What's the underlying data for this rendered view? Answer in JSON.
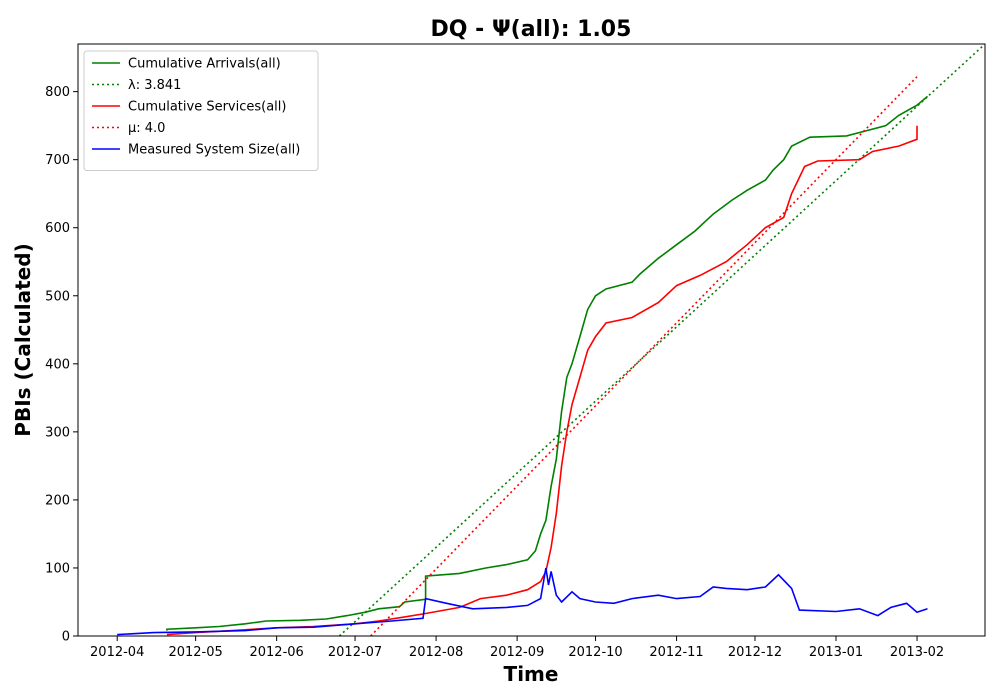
{
  "chart_data": {
    "type": "line",
    "title": "DQ -  Ψ(all): 1.05",
    "xlabel": "Time",
    "ylabel": "PBIs (Calculated)",
    "xlim": [
      "2012-03-17",
      "2013-02-27"
    ],
    "ylim": [
      0,
      870
    ],
    "xticks": [
      "2012-04",
      "2012-05",
      "2012-06",
      "2012-07",
      "2012-08",
      "2012-09",
      "2012-10",
      "2012-11",
      "2012-12",
      "2013-01",
      "2013-02"
    ],
    "yticks": [
      0,
      100,
      200,
      300,
      400,
      500,
      600,
      700,
      800
    ],
    "grid": false,
    "legend_position": "top-left",
    "series": [
      {
        "name": "Cumulative Arrivals(all)",
        "color": "#008000",
        "style": "solid",
        "points": [
          [
            "2012-04-20",
            8
          ],
          [
            "2012-04-20",
            10
          ],
          [
            "2012-05-01",
            12
          ],
          [
            "2012-05-10",
            14
          ],
          [
            "2012-05-20",
            18
          ],
          [
            "2012-05-28",
            22
          ],
          [
            "2012-06-10",
            23
          ],
          [
            "2012-06-20",
            25
          ],
          [
            "2012-06-28",
            30
          ],
          [
            "2012-07-05",
            35
          ],
          [
            "2012-07-10",
            40
          ],
          [
            "2012-07-18",
            43
          ],
          [
            "2012-07-20",
            50
          ],
          [
            "2012-07-28",
            54
          ],
          [
            "2012-07-28",
            88
          ],
          [
            "2012-08-10",
            92
          ],
          [
            "2012-08-20",
            100
          ],
          [
            "2012-08-28",
            105
          ],
          [
            "2012-09-05",
            112
          ],
          [
            "2012-09-08",
            125
          ],
          [
            "2012-09-10",
            150
          ],
          [
            "2012-09-12",
            170
          ],
          [
            "2012-09-14",
            220
          ],
          [
            "2012-09-16",
            260
          ],
          [
            "2012-09-18",
            330
          ],
          [
            "2012-09-20",
            380
          ],
          [
            "2012-09-22",
            400
          ],
          [
            "2012-09-25",
            440
          ],
          [
            "2012-09-28",
            480
          ],
          [
            "2012-10-01",
            500
          ],
          [
            "2012-10-05",
            510
          ],
          [
            "2012-10-15",
            520
          ],
          [
            "2012-10-18",
            532
          ],
          [
            "2012-10-25",
            555
          ],
          [
            "2012-11-01",
            575
          ],
          [
            "2012-11-08",
            595
          ],
          [
            "2012-11-15",
            620
          ],
          [
            "2012-11-22",
            640
          ],
          [
            "2012-11-28",
            655
          ],
          [
            "2012-12-05",
            670
          ],
          [
            "2012-12-08",
            685
          ],
          [
            "2012-12-12",
            700
          ],
          [
            "2012-12-15",
            720
          ],
          [
            "2012-12-22",
            733
          ],
          [
            "2013-01-05",
            735
          ],
          [
            "2013-01-12",
            742
          ],
          [
            "2013-01-20",
            750
          ],
          [
            "2013-01-25",
            765
          ],
          [
            "2013-02-01",
            780
          ],
          [
            "2013-02-05",
            793
          ]
        ]
      },
      {
        "name": "λ: 3.841",
        "color": "#008000",
        "style": "dotted",
        "points": [
          [
            "2012-06-25",
            0
          ],
          [
            "2013-02-27",
            870
          ]
        ]
      },
      {
        "name": "Cumulative Services(all)",
        "color": "#ff0000",
        "style": "solid",
        "points": [
          [
            "2012-04-20",
            2
          ],
          [
            "2012-05-01",
            5
          ],
          [
            "2012-05-15",
            8
          ],
          [
            "2012-06-01",
            12
          ],
          [
            "2012-06-15",
            14
          ],
          [
            "2012-07-01",
            18
          ],
          [
            "2012-07-10",
            22
          ],
          [
            "2012-07-20",
            28
          ],
          [
            "2012-07-28",
            33
          ],
          [
            "2012-08-10",
            42
          ],
          [
            "2012-08-18",
            55
          ],
          [
            "2012-08-28",
            60
          ],
          [
            "2012-09-05",
            68
          ],
          [
            "2012-09-10",
            80
          ],
          [
            "2012-09-12",
            95
          ],
          [
            "2012-09-14",
            130
          ],
          [
            "2012-09-16",
            180
          ],
          [
            "2012-09-18",
            250
          ],
          [
            "2012-09-20",
            300
          ],
          [
            "2012-09-22",
            340
          ],
          [
            "2012-09-25",
            380
          ],
          [
            "2012-09-28",
            420
          ],
          [
            "2012-10-01",
            440
          ],
          [
            "2012-10-05",
            460
          ],
          [
            "2012-10-15",
            468
          ],
          [
            "2012-10-25",
            490
          ],
          [
            "2012-11-01",
            515
          ],
          [
            "2012-11-10",
            530
          ],
          [
            "2012-11-20",
            550
          ],
          [
            "2012-11-28",
            575
          ],
          [
            "2012-12-05",
            600
          ],
          [
            "2012-12-12",
            615
          ],
          [
            "2012-12-15",
            650
          ],
          [
            "2012-12-20",
            690
          ],
          [
            "2012-12-25",
            698
          ],
          [
            "2013-01-10",
            700
          ],
          [
            "2013-01-15",
            712
          ],
          [
            "2013-01-25",
            720
          ],
          [
            "2013-02-01",
            730
          ],
          [
            "2013-02-01",
            750
          ]
        ]
      },
      {
        "name": "μ: 4.0",
        "color": "#ff0000",
        "style": "dotted",
        "points": [
          [
            "2012-07-07",
            0
          ],
          [
            "2013-02-01",
            822
          ]
        ]
      },
      {
        "name": "Measured System Size(all)",
        "color": "#0000ff",
        "style": "solid",
        "points": [
          [
            "2012-04-01",
            2
          ],
          [
            "2012-04-15",
            5
          ],
          [
            "2012-05-01",
            6
          ],
          [
            "2012-05-20",
            8
          ],
          [
            "2012-06-01",
            12
          ],
          [
            "2012-06-15",
            13
          ],
          [
            "2012-07-01",
            18
          ],
          [
            "2012-07-15",
            22
          ],
          [
            "2012-07-27",
            26
          ],
          [
            "2012-07-28",
            55
          ],
          [
            "2012-08-05",
            48
          ],
          [
            "2012-08-15",
            40
          ],
          [
            "2012-08-28",
            42
          ],
          [
            "2012-09-05",
            45
          ],
          [
            "2012-09-10",
            55
          ],
          [
            "2012-09-12",
            100
          ],
          [
            "2012-09-13",
            75
          ],
          [
            "2012-09-14",
            95
          ],
          [
            "2012-09-16",
            60
          ],
          [
            "2012-09-18",
            50
          ],
          [
            "2012-09-22",
            65
          ],
          [
            "2012-09-25",
            55
          ],
          [
            "2012-10-01",
            50
          ],
          [
            "2012-10-08",
            48
          ],
          [
            "2012-10-15",
            55
          ],
          [
            "2012-10-25",
            60
          ],
          [
            "2012-11-01",
            55
          ],
          [
            "2012-11-10",
            58
          ],
          [
            "2012-11-15",
            72
          ],
          [
            "2012-11-20",
            70
          ],
          [
            "2012-11-28",
            68
          ],
          [
            "2012-12-05",
            72
          ],
          [
            "2012-12-10",
            90
          ],
          [
            "2012-12-15",
            70
          ],
          [
            "2012-12-18",
            38
          ],
          [
            "2013-01-01",
            36
          ],
          [
            "2013-01-10",
            40
          ],
          [
            "2013-01-17",
            30
          ],
          [
            "2013-01-22",
            42
          ],
          [
            "2013-01-28",
            48
          ],
          [
            "2013-02-01",
            35
          ],
          [
            "2013-02-05",
            40
          ]
        ]
      }
    ]
  }
}
